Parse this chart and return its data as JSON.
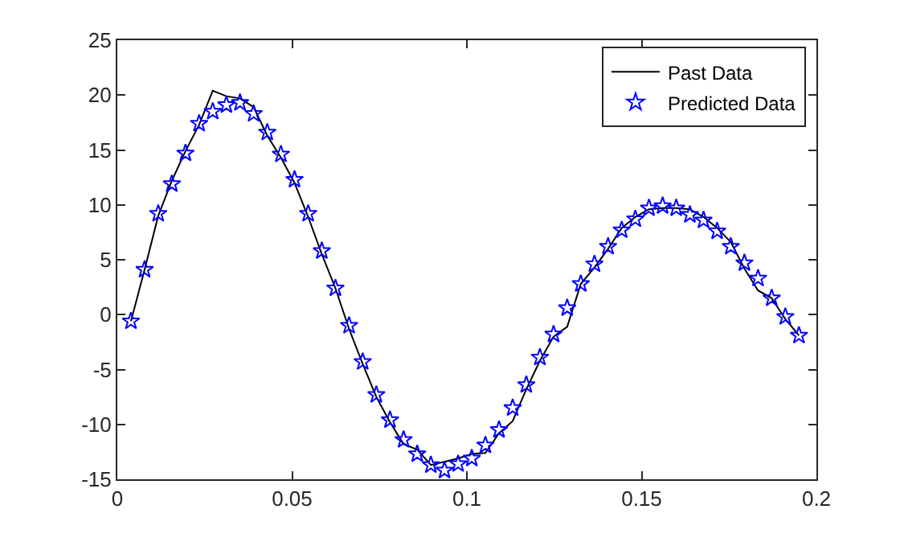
{
  "chart_data": {
    "type": "line",
    "x": [
      0.0039,
      0.0078,
      0.0117,
      0.0156,
      0.0195,
      0.0234,
      0.0273,
      0.0312,
      0.0351,
      0.039,
      0.0429,
      0.0468,
      0.0507,
      0.0546,
      0.0585,
      0.0624,
      0.0663,
      0.0702,
      0.0741,
      0.078,
      0.0819,
      0.0858,
      0.0897,
      0.0936,
      0.0975,
      0.1014,
      0.1053,
      0.1092,
      0.1131,
      0.117,
      0.1209,
      0.1248,
      0.1287,
      0.1326,
      0.1365,
      0.1404,
      0.1443,
      0.1482,
      0.1521,
      0.156,
      0.1599,
      0.1638,
      0.1677,
      0.1716,
      0.1755,
      0.1794,
      0.1833,
      0.1872,
      0.1911,
      0.195
    ],
    "series": [
      {
        "name": "Past Data",
        "color": "#000000",
        "marker": "none",
        "line_style": "solid",
        "values": [
          -0.6,
          4.1,
          9.0,
          12.2,
          14.9,
          17.3,
          20.4,
          19.9,
          19.7,
          18.9,
          16.3,
          14.3,
          12.0,
          8.9,
          5.5,
          2.4,
          -1.3,
          -4.5,
          -7.5,
          -9.8,
          -11.8,
          -12.3,
          -13.7,
          -13.4,
          -13.1,
          -12.7,
          -12.6,
          -10.8,
          -9.7,
          -6.8,
          -4.2,
          -2.0,
          -1.1,
          2.8,
          4.3,
          6.0,
          7.9,
          8.9,
          9.6,
          9.7,
          9.7,
          9.6,
          8.9,
          7.9,
          6.6,
          4.2,
          2.2,
          1.5,
          -0.4,
          -1.9
        ]
      },
      {
        "name": "Predicted Data",
        "type": "scatter",
        "color": "#0000ff",
        "marker": "star",
        "values": [
          -0.6,
          4.1,
          9.2,
          11.9,
          14.7,
          17.4,
          18.5,
          19.1,
          19.3,
          18.3,
          16.6,
          14.6,
          12.3,
          9.2,
          5.8,
          2.4,
          -1.0,
          -4.3,
          -7.3,
          -9.6,
          -11.4,
          -12.7,
          -13.7,
          -14.2,
          -13.6,
          -13.1,
          -11.9,
          -10.5,
          -8.5,
          -6.4,
          -3.9,
          -1.8,
          0.6,
          2.8,
          4.6,
          6.2,
          7.7,
          8.7,
          9.7,
          9.9,
          9.7,
          9.1,
          8.6,
          7.6,
          6.2,
          4.7,
          3.3,
          1.5,
          -0.2,
          -1.9
        ]
      }
    ],
    "xlim": [
      0,
      0.2
    ],
    "xticks": [
      0,
      0.05,
      0.1,
      0.15,
      0.2
    ],
    "ylim": [
      -15,
      25
    ],
    "yticks": [
      -15,
      -10,
      -5,
      0,
      5,
      10,
      15,
      20,
      25
    ],
    "grid": false,
    "legend": "top right"
  }
}
